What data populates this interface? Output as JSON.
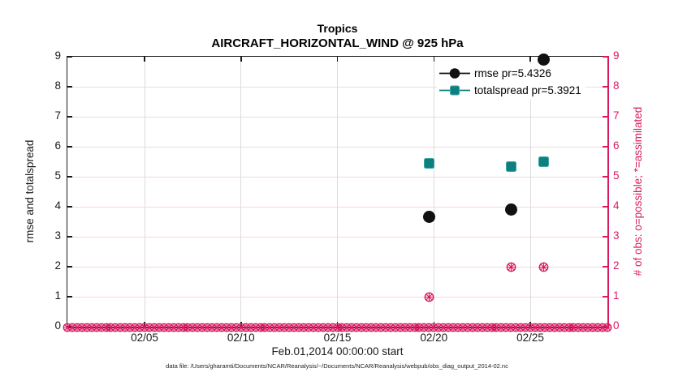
{
  "figure": {
    "title_line1": "Tropics",
    "title_line2": "AIRCRAFT_HORIZONTAL_WIND @ 925 hPa",
    "footer_data_file": "data file: /Users/gharamti/Documents/NCAR/Reanalysis/~/Documents/NCAR/Reanalysis/webpub/obs_diag_output_2014-02.nc"
  },
  "style": {
    "accent_pink": "#d81b60",
    "teal_fill": "#0f7e7e",
    "teal_edge": "#3aa6a6",
    "marker_black": "#111111",
    "grid_horizontal_pink": "#f6d7e2",
    "grid_vertical_gray": "#dcdcdc",
    "spine_black": "#1a1a1a"
  },
  "chart_data": {
    "type": "scatter",
    "title": "Tropics",
    "subtitle": "AIRCRAFT_HORIZONTAL_WIND @ 925 hPa",
    "xlabel": "Feb.01,2014 00:00:00 start",
    "ylabel_left": "rmse and totalspread",
    "ylabel_right": "# of obs: o=possible; *=assimilated",
    "x_range_days": [
      1,
      29
    ],
    "x_ticks": [
      {
        "day": 5,
        "label": "02/05"
      },
      {
        "day": 10,
        "label": "02/10"
      },
      {
        "day": 15,
        "label": "02/15"
      },
      {
        "day": 20,
        "label": "02/20"
      },
      {
        "day": 25,
        "label": "02/25"
      }
    ],
    "ylim": [
      0,
      9
    ],
    "y_ticks": [
      0,
      1,
      2,
      3,
      4,
      5,
      6,
      7,
      8,
      9
    ],
    "grid": true,
    "legend_position": "top-right-inside",
    "series": [
      {
        "name": "rmse pr=5.4326",
        "marker": "filled-circle",
        "color": "#111111",
        "points": [
          {
            "day": 19.75,
            "value": 3.65
          },
          {
            "day": 24.0,
            "value": 3.9
          },
          {
            "day": 25.7,
            "value": 8.9
          }
        ]
      },
      {
        "name": "totalspread pr=5.3921",
        "marker": "filled-square",
        "color": "#0f7e7e",
        "points": [
          {
            "day": 19.75,
            "value": 5.45
          },
          {
            "day": 24.0,
            "value": 5.35
          },
          {
            "day": 25.7,
            "value": 5.5
          }
        ]
      },
      {
        "name": "# of obs: o=possible; *=assimilated",
        "marker": "circle-asterisk",
        "color": "#d81b60",
        "points": [
          {
            "day": 19.75,
            "value": 1
          },
          {
            "day": 24.0,
            "value": 2
          },
          {
            "day": 25.7,
            "value": 2
          }
        ],
        "zero_row": {
          "start_day": 1,
          "end_day": 29,
          "step_days": 0.25,
          "value": 0
        }
      }
    ]
  }
}
